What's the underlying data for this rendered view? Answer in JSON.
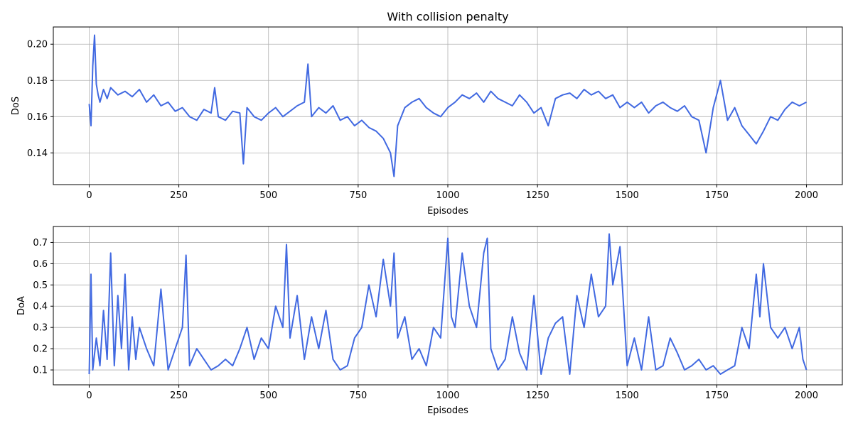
{
  "title": "With collision penalty",
  "line_color": "#4169e1",
  "chart_data": [
    {
      "type": "line",
      "title": "With collision penalty",
      "xlabel": "Episodes",
      "ylabel": "DoS",
      "xlim": [
        -100,
        2100
      ],
      "ylim": [
        0.1225,
        0.2095
      ],
      "x_ticks": [
        0,
        250,
        500,
        750,
        1000,
        1250,
        1500,
        1750,
        2000
      ],
      "y_ticks": [
        0.14,
        0.16,
        0.18,
        0.2
      ],
      "x_tick_labels": [
        "0",
        "250",
        "500",
        "750",
        "1000",
        "1250",
        "1500",
        "1750",
        "2000"
      ],
      "y_tick_labels": [
        "0.14",
        "0.16",
        "0.18",
        "0.20"
      ],
      "grid": true,
      "series": [
        {
          "color": "#4169e1",
          "x": [
            0,
            5,
            10,
            15,
            20,
            25,
            30,
            40,
            50,
            60,
            80,
            100,
            120,
            140,
            160,
            180,
            200,
            220,
            240,
            260,
            280,
            300,
            320,
            340,
            350,
            360,
            380,
            400,
            420,
            430,
            440,
            460,
            480,
            500,
            520,
            540,
            560,
            580,
            600,
            610,
            620,
            640,
            660,
            680,
            700,
            720,
            740,
            760,
            780,
            800,
            820,
            840,
            850,
            860,
            880,
            900,
            920,
            940,
            960,
            980,
            1000,
            1020,
            1040,
            1060,
            1080,
            1100,
            1120,
            1140,
            1160,
            1180,
            1200,
            1220,
            1240,
            1260,
            1280,
            1300,
            1320,
            1340,
            1360,
            1380,
            1400,
            1420,
            1440,
            1460,
            1480,
            1500,
            1520,
            1540,
            1560,
            1580,
            1600,
            1620,
            1640,
            1660,
            1680,
            1700,
            1720,
            1740,
            1760,
            1780,
            1800,
            1820,
            1840,
            1860,
            1880,
            1900,
            1920,
            1940,
            1960,
            1980,
            2000
          ],
          "y": [
            0.167,
            0.155,
            0.188,
            0.205,
            0.178,
            0.172,
            0.168,
            0.175,
            0.17,
            0.176,
            0.172,
            0.174,
            0.171,
            0.175,
            0.168,
            0.172,
            0.166,
            0.168,
            0.163,
            0.165,
            0.16,
            0.158,
            0.164,
            0.162,
            0.176,
            0.16,
            0.158,
            0.163,
            0.162,
            0.134,
            0.165,
            0.16,
            0.158,
            0.162,
            0.165,
            0.16,
            0.163,
            0.166,
            0.168,
            0.189,
            0.16,
            0.165,
            0.162,
            0.166,
            0.158,
            0.16,
            0.155,
            0.158,
            0.154,
            0.152,
            0.148,
            0.14,
            0.127,
            0.155,
            0.165,
            0.168,
            0.17,
            0.165,
            0.162,
            0.16,
            0.165,
            0.168,
            0.172,
            0.17,
            0.173,
            0.168,
            0.174,
            0.17,
            0.168,
            0.166,
            0.172,
            0.168,
            0.162,
            0.165,
            0.155,
            0.17,
            0.172,
            0.173,
            0.17,
            0.175,
            0.172,
            0.174,
            0.17,
            0.172,
            0.165,
            0.168,
            0.165,
            0.168,
            0.162,
            0.166,
            0.168,
            0.165,
            0.163,
            0.166,
            0.16,
            0.158,
            0.14,
            0.165,
            0.18,
            0.158,
            0.165,
            0.155,
            0.15,
            0.145,
            0.152,
            0.16,
            0.158,
            0.164,
            0.168,
            0.166,
            0.168
          ]
        }
      ]
    },
    {
      "type": "line",
      "xlabel": "Episodes",
      "ylabel": "DoA",
      "xlim": [
        -100,
        2100
      ],
      "ylim": [
        0.03,
        0.775
      ],
      "x_ticks": [
        0,
        250,
        500,
        750,
        1000,
        1250,
        1500,
        1750,
        2000
      ],
      "y_ticks": [
        0.1,
        0.2,
        0.3,
        0.4,
        0.5,
        0.6,
        0.7
      ],
      "x_tick_labels": [
        "0",
        "250",
        "500",
        "750",
        "1000",
        "1250",
        "1500",
        "1750",
        "2000"
      ],
      "y_tick_labels": [
        "0.1",
        "0.2",
        "0.3",
        "0.4",
        "0.5",
        "0.6",
        "0.7"
      ],
      "grid": true,
      "series": [
        {
          "color": "#4169e1",
          "x": [
            0,
            5,
            10,
            20,
            30,
            40,
            50,
            60,
            70,
            80,
            90,
            100,
            110,
            120,
            130,
            140,
            160,
            180,
            200,
            220,
            240,
            260,
            270,
            280,
            300,
            320,
            340,
            360,
            380,
            400,
            420,
            440,
            460,
            480,
            500,
            520,
            540,
            550,
            560,
            580,
            600,
            620,
            640,
            660,
            680,
            700,
            720,
            740,
            760,
            780,
            800,
            820,
            840,
            850,
            860,
            880,
            900,
            920,
            940,
            960,
            980,
            1000,
            1010,
            1020,
            1040,
            1060,
            1080,
            1100,
            1110,
            1120,
            1140,
            1160,
            1180,
            1200,
            1220,
            1240,
            1260,
            1280,
            1300,
            1320,
            1340,
            1360,
            1380,
            1400,
            1420,
            1440,
            1450,
            1460,
            1480,
            1500,
            1520,
            1540,
            1560,
            1580,
            1600,
            1620,
            1640,
            1660,
            1680,
            1700,
            1720,
            1740,
            1760,
            1780,
            1800,
            1820,
            1840,
            1860,
            1870,
            1880,
            1900,
            1920,
            1940,
            1960,
            1980,
            1990,
            2000
          ],
          "y": [
            0.08,
            0.55,
            0.1,
            0.25,
            0.12,
            0.38,
            0.15,
            0.65,
            0.12,
            0.45,
            0.2,
            0.55,
            0.1,
            0.35,
            0.15,
            0.3,
            0.2,
            0.12,
            0.48,
            0.1,
            0.2,
            0.3,
            0.64,
            0.12,
            0.2,
            0.15,
            0.1,
            0.12,
            0.15,
            0.12,
            0.2,
            0.3,
            0.15,
            0.25,
            0.2,
            0.4,
            0.3,
            0.69,
            0.25,
            0.45,
            0.15,
            0.35,
            0.2,
            0.38,
            0.15,
            0.1,
            0.12,
            0.25,
            0.3,
            0.5,
            0.35,
            0.62,
            0.4,
            0.65,
            0.25,
            0.35,
            0.15,
            0.2,
            0.12,
            0.3,
            0.25,
            0.72,
            0.35,
            0.3,
            0.65,
            0.4,
            0.3,
            0.65,
            0.72,
            0.2,
            0.1,
            0.15,
            0.35,
            0.18,
            0.1,
            0.45,
            0.08,
            0.25,
            0.32,
            0.35,
            0.08,
            0.45,
            0.3,
            0.55,
            0.35,
            0.4,
            0.74,
            0.5,
            0.68,
            0.12,
            0.25,
            0.1,
            0.35,
            0.1,
            0.12,
            0.25,
            0.18,
            0.1,
            0.12,
            0.15,
            0.1,
            0.12,
            0.08,
            0.1,
            0.12,
            0.3,
            0.2,
            0.55,
            0.35,
            0.6,
            0.3,
            0.25,
            0.3,
            0.2,
            0.3,
            0.15,
            0.1
          ]
        }
      ]
    }
  ]
}
